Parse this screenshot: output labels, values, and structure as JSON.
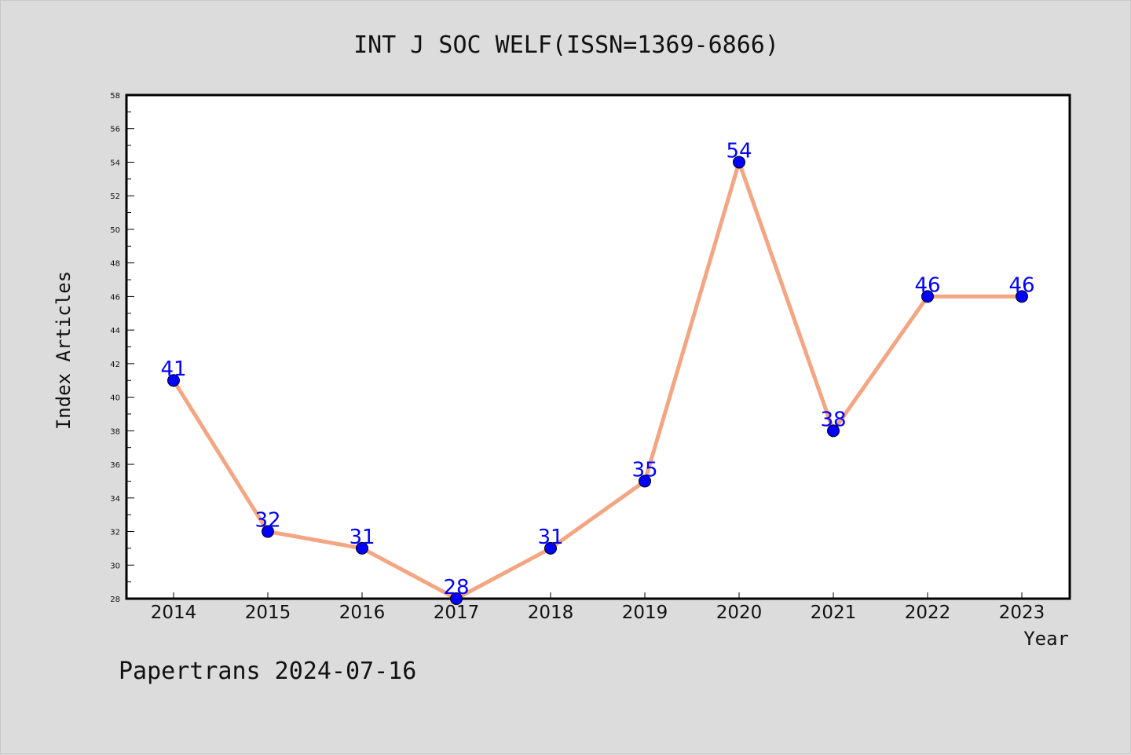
{
  "chart_data": {
    "type": "line",
    "title": "INT J SOC WELF(ISSN=1369-6866)",
    "xlabel": "Year",
    "ylabel": "Index Articles",
    "categories": [
      "2014",
      "2015",
      "2016",
      "2017",
      "2018",
      "2019",
      "2020",
      "2021",
      "2022",
      "2023"
    ],
    "series": [
      {
        "values": [
          41,
          32,
          31,
          28,
          31,
          35,
          54,
          38,
          46,
          46
        ]
      }
    ],
    "ylim": [
      28,
      58
    ],
    "yticks": [
      28,
      30,
      32,
      34,
      36,
      38,
      40,
      42,
      44,
      46,
      48,
      50,
      52,
      54,
      56,
      58
    ],
    "grid": false,
    "colors": {
      "line": "#f4a582",
      "marker": "#0000ff",
      "label": "#0000ff"
    }
  },
  "footer": "Papertrans 2024-07-16"
}
